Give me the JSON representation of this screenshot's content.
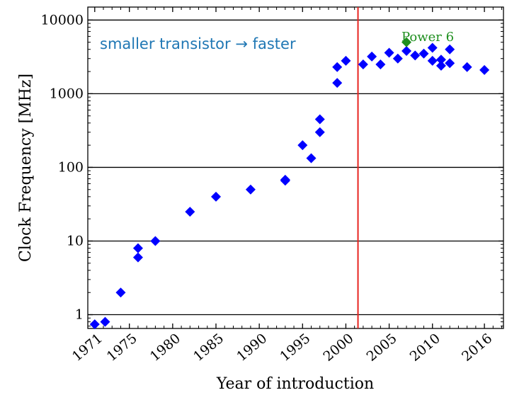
{
  "chart_data": {
    "type": "scatter",
    "xlabel": "Year of introduction",
    "ylabel": "Clock Frequency [MHz]",
    "yscale": "log",
    "ylim": [
      0.65,
      15000
    ],
    "xlim": [
      1970.2,
      2018.2
    ],
    "x_tick_labels": [
      "1971",
      "1975",
      "1980",
      "1985",
      "1990",
      "1995",
      "2000",
      "2005",
      "2010",
      "2016"
    ],
    "x_tick_values": [
      1971,
      1975,
      1980,
      1985,
      1990,
      1995,
      2000,
      2005,
      2010,
      2016
    ],
    "y_tick_labels": [
      "1",
      "10",
      "100",
      "1000",
      "10000"
    ],
    "y_tick_values": [
      1,
      10,
      100,
      1000,
      10000
    ],
    "grid": "horizontal",
    "marker": "diamond",
    "colors": {
      "points": "#0000ff",
      "highlight": "#1f8f1f",
      "vline": "#e8231f",
      "annotation": "#1f77b4"
    },
    "vertical_line_x": 2001.4,
    "annotation": "smaller transistor → faster",
    "highlight": {
      "label": "Power 6",
      "x": 2007,
      "y": 5000
    },
    "points": [
      [
        1971,
        0.74
      ],
      [
        1972.2,
        0.8
      ],
      [
        1974,
        2
      ],
      [
        1976,
        6
      ],
      [
        1976,
        8
      ],
      [
        1978,
        10
      ],
      [
        1982,
        25
      ],
      [
        1985,
        40
      ],
      [
        1989,
        50
      ],
      [
        1993,
        66
      ],
      [
        1993,
        68
      ],
      [
        1995,
        200
      ],
      [
        1996,
        133
      ],
      [
        1997,
        300
      ],
      [
        1997,
        450
      ],
      [
        1999,
        1400
      ],
      [
        1999,
        2300
      ],
      [
        2000,
        2800
      ],
      [
        2002,
        2500
      ],
      [
        2003,
        3200
      ],
      [
        2004,
        2500
      ],
      [
        2005,
        3600
      ],
      [
        2006,
        3000
      ],
      [
        2007,
        3800
      ],
      [
        2008,
        3300
      ],
      [
        2009,
        3500
      ],
      [
        2010,
        4200
      ],
      [
        2010,
        2800
      ],
      [
        2011,
        2400
      ],
      [
        2011,
        2900
      ],
      [
        2012,
        2600
      ],
      [
        2012,
        4000
      ],
      [
        2014,
        2300
      ],
      [
        2016,
        2100
      ]
    ]
  }
}
